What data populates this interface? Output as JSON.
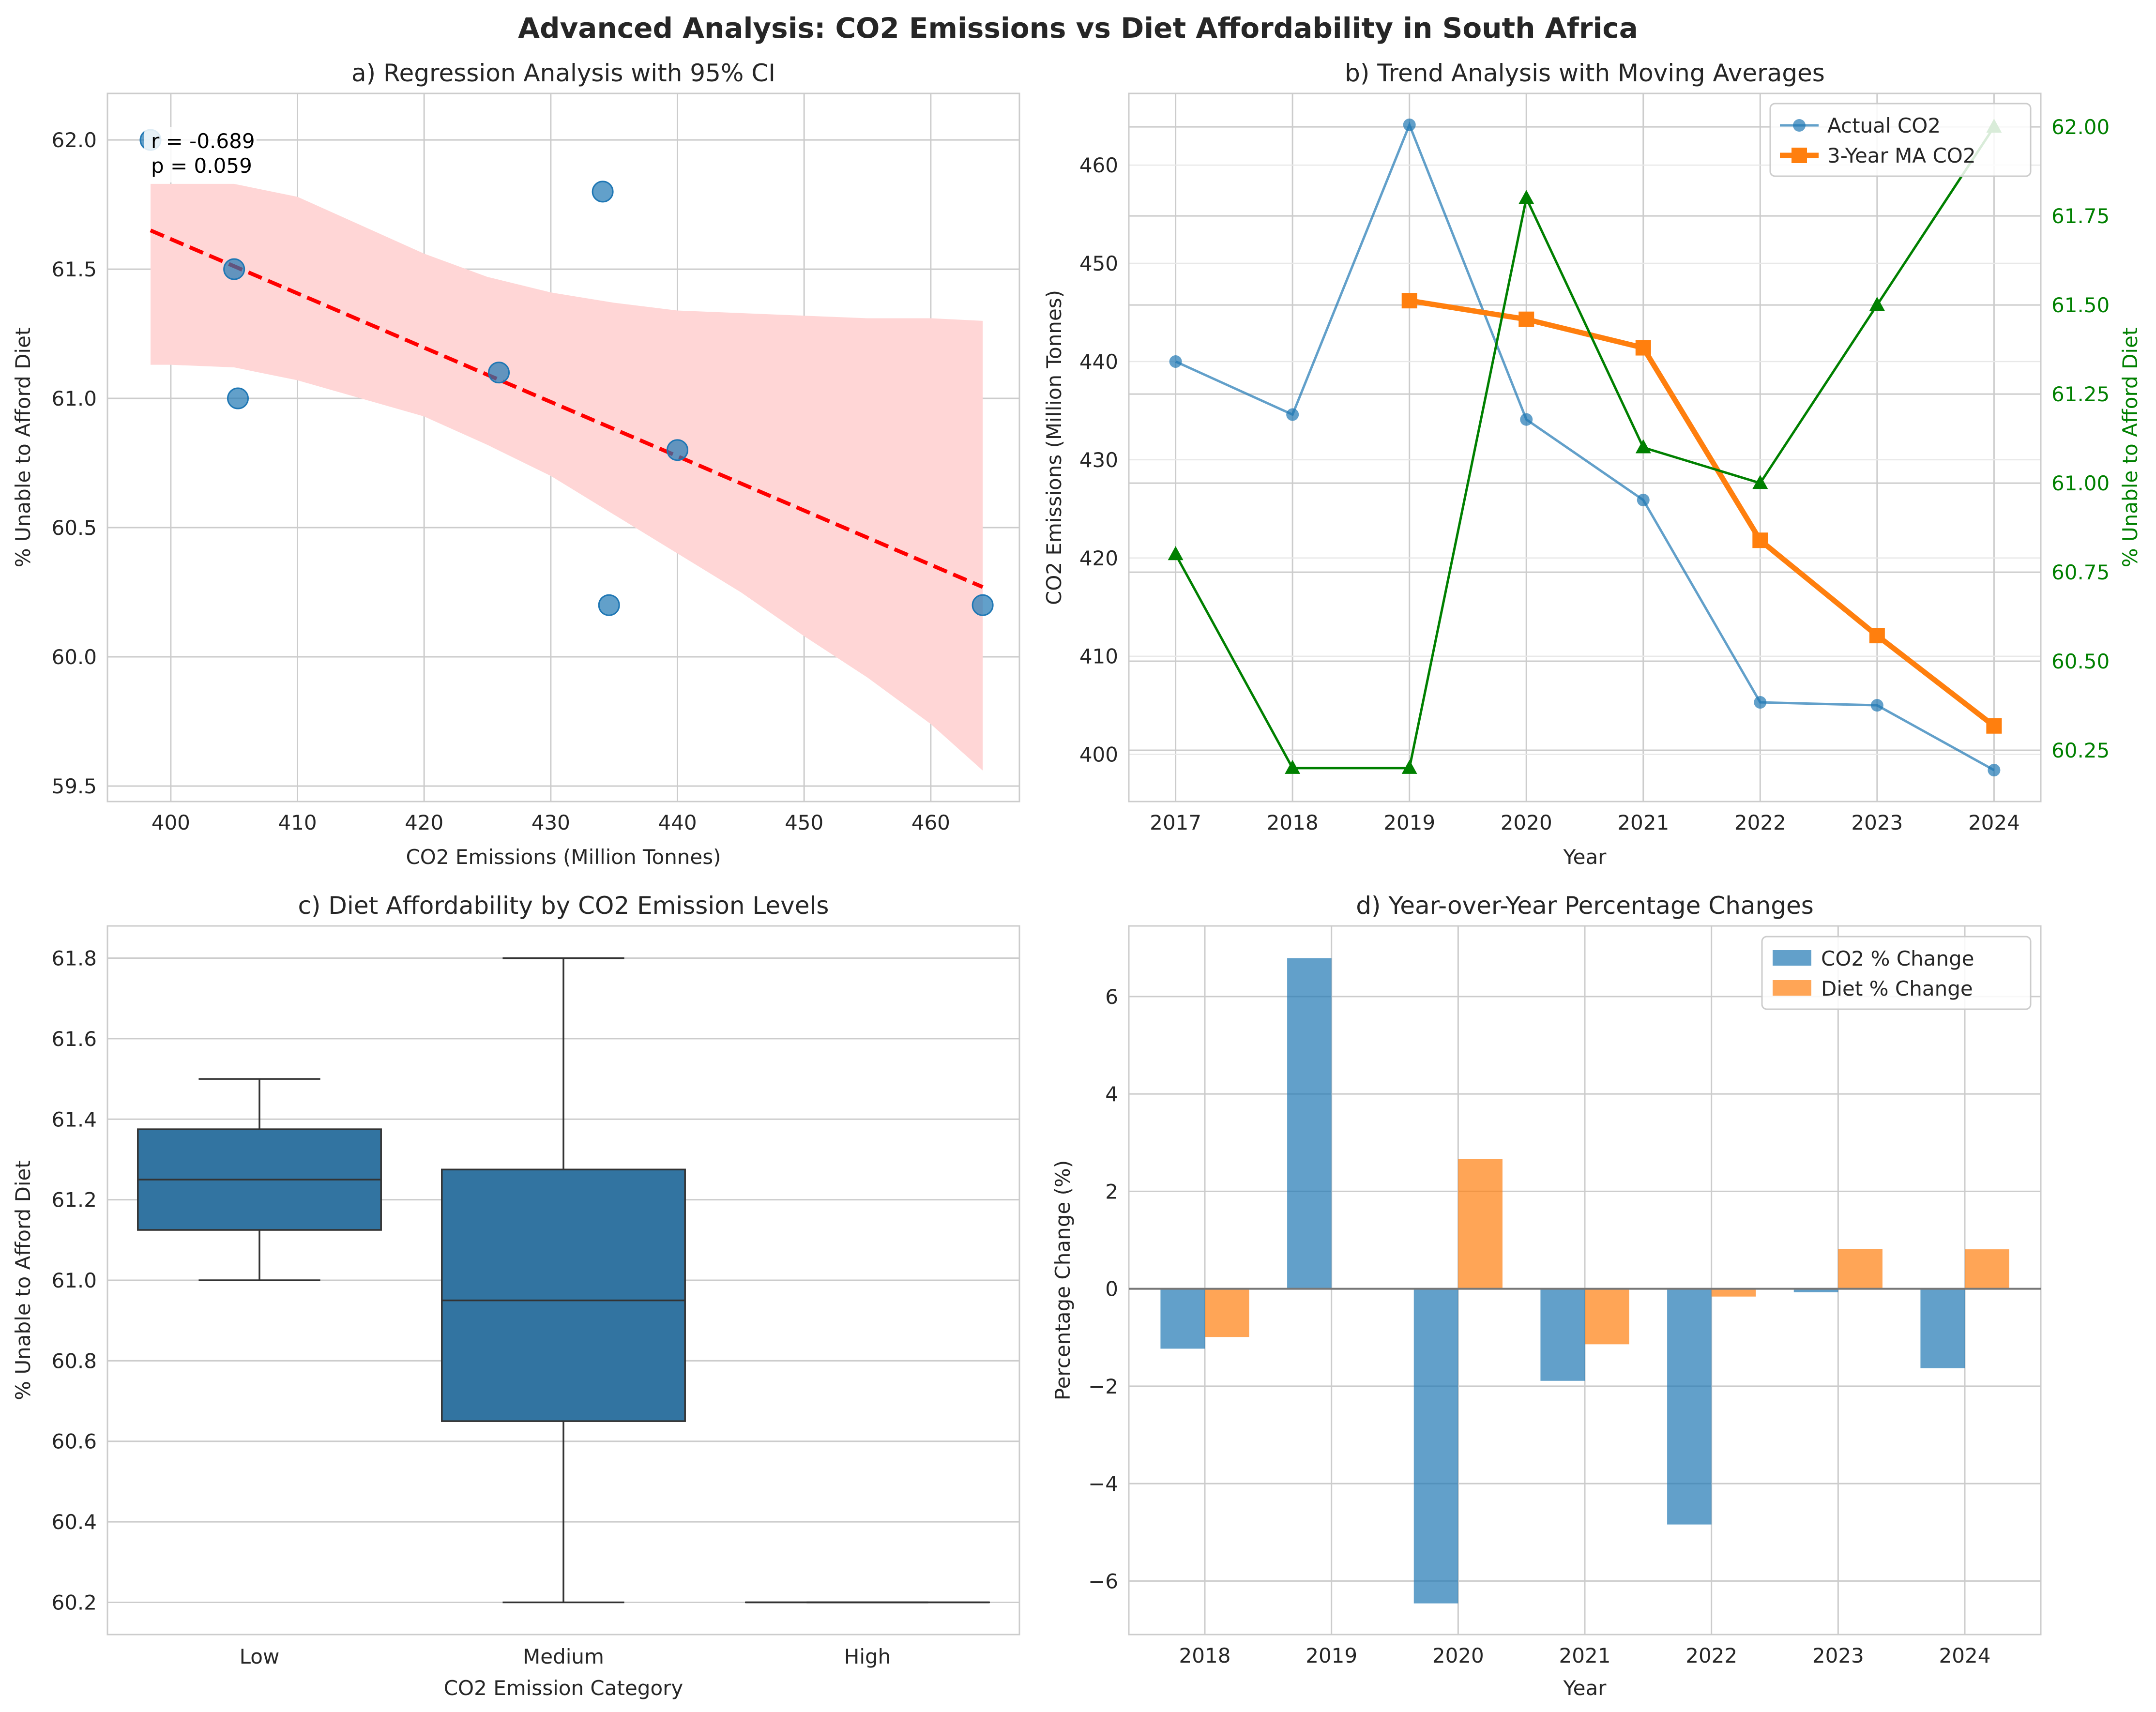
{
  "figure_title": "Advanced Analysis: CO2 Emissions vs Diet Affordability in South Africa",
  "colors": {
    "blue": "#1f77b4",
    "orange": "#ff7f0e",
    "green": "#008000",
    "red": "#ff0000",
    "ci_fill": "#ffd6d6",
    "grid": "#cccccc",
    "box_fill": "#3274a1",
    "box_line": "#333333"
  },
  "chart_data": [
    {
      "panel": "a",
      "type": "scatter",
      "title": "a) Regression Analysis with 95% CI",
      "xlabel": "CO2 Emissions (Million Tonnes)",
      "ylabel": "% Unable to Afford Diet",
      "xlim": [
        395,
        467
      ],
      "ylim": [
        59.44,
        62.18
      ],
      "xticks": [
        400,
        410,
        420,
        430,
        440,
        450,
        460
      ],
      "yticks": [
        59.5,
        60.0,
        60.5,
        61.0,
        61.5,
        62.0
      ],
      "xtick_labels": [
        "400",
        "410",
        "420",
        "430",
        "440",
        "450",
        "460"
      ],
      "ytick_labels": [
        "59.5",
        "60.0",
        "60.5",
        "61.0",
        "61.5",
        "62.0"
      ],
      "points": [
        {
          "x": 440.0,
          "y": 60.8
        },
        {
          "x": 434.6,
          "y": 60.2
        },
        {
          "x": 464.1,
          "y": 60.2
        },
        {
          "x": 434.1,
          "y": 61.8
        },
        {
          "x": 425.9,
          "y": 61.1
        },
        {
          "x": 405.3,
          "y": 61.0
        },
        {
          "x": 405.0,
          "y": 61.5
        },
        {
          "x": 398.4,
          "y": 62.0
        }
      ],
      "regression_line": {
        "x": [
          398.4,
          464.1
        ],
        "y": [
          61.65,
          60.27
        ]
      },
      "ci_band": {
        "x": [
          398.4,
          400,
          405,
          410,
          415,
          420,
          425,
          430,
          435,
          440,
          445,
          450,
          455,
          460,
          464.1
        ],
        "upper": [
          61.83,
          61.83,
          61.83,
          61.78,
          61.67,
          61.56,
          61.47,
          61.41,
          61.37,
          61.34,
          61.33,
          61.32,
          61.31,
          61.31,
          61.3
        ],
        "lower": [
          61.13,
          61.13,
          61.12,
          61.07,
          61.0,
          60.93,
          60.82,
          60.7,
          60.55,
          60.4,
          60.25,
          60.08,
          59.92,
          59.74,
          59.56
        ]
      },
      "annotation_lines": [
        "r = -0.689",
        "p = 0.059"
      ]
    },
    {
      "panel": "b",
      "type": "line",
      "title": "b) Trend Analysis with Moving Averages",
      "xlabel": "Year",
      "ylabel": "CO2 Emissions (Million Tonnes)",
      "y2label": "% Unable to Afford Diet",
      "x": [
        2017,
        2018,
        2019,
        2020,
        2021,
        2022,
        2023,
        2024
      ],
      "xlim": [
        2016.6,
        2024.4
      ],
      "ylim": [
        395.2,
        467.3
      ],
      "y2lim": [
        60.106,
        62.094
      ],
      "yticks": [
        400,
        410,
        420,
        430,
        440,
        450,
        460
      ],
      "y2ticks": [
        60.25,
        60.5,
        60.75,
        61.0,
        61.25,
        61.5,
        61.75,
        62.0
      ],
      "xtick_labels": [
        "2017",
        "2018",
        "2019",
        "2020",
        "2021",
        "2022",
        "2023",
        "2024"
      ],
      "ytick_labels": [
        "400",
        "410",
        "420",
        "430",
        "440",
        "450",
        "460"
      ],
      "y2tick_labels": [
        "60.25",
        "60.50",
        "60.75",
        "61.00",
        "61.25",
        "61.50",
        "61.75",
        "62.00"
      ],
      "series": [
        {
          "name": "Actual CO2",
          "axis": "left",
          "values": [
            440.0,
            434.6,
            464.1,
            434.1,
            425.9,
            405.3,
            405.0,
            398.4
          ]
        },
        {
          "name": "3-Year MA CO2",
          "axis": "left",
          "values": [
            null,
            null,
            446.2,
            444.3,
            441.4,
            421.8,
            412.1,
            402.9
          ]
        },
        {
          "axis": "right",
          "values": [
            60.8,
            60.2,
            60.2,
            61.8,
            61.1,
            61.0,
            61.5,
            62.0
          ]
        }
      ],
      "legend_position": "top-right"
    },
    {
      "panel": "c",
      "type": "box",
      "title": "c) Diet Affordability by CO2 Emission Levels",
      "xlabel": "CO2 Emission Category",
      "ylabel": "% Unable to Afford Diet",
      "categories": [
        "Low",
        "Medium",
        "High"
      ],
      "ylim": [
        60.12,
        61.88
      ],
      "yticks": [
        60.2,
        60.4,
        60.6,
        60.8,
        61.0,
        61.2,
        61.4,
        61.6,
        61.8
      ],
      "ytick_labels": [
        "60.2",
        "60.4",
        "60.6",
        "60.8",
        "61.0",
        "61.2",
        "61.4",
        "61.6",
        "61.8"
      ],
      "boxes": [
        {
          "min": 61.0,
          "q1": 61.125,
          "median": 61.25,
          "q3": 61.375,
          "max": 61.5
        },
        {
          "min": 60.2,
          "q1": 60.65,
          "median": 60.95,
          "q3": 61.275,
          "max": 61.8
        },
        {
          "min": 60.2,
          "q1": 60.2,
          "median": 60.2,
          "q3": 60.2,
          "max": 60.2
        }
      ]
    },
    {
      "panel": "d",
      "type": "bar",
      "title": "d) Year-over-Year Percentage Changes",
      "xlabel": "Year",
      "ylabel": "Percentage Change (%)",
      "categories": [
        "2018",
        "2019",
        "2020",
        "2021",
        "2022",
        "2023",
        "2024"
      ],
      "ylim": [
        -7.1,
        7.45
      ],
      "yticks": [
        -6,
        -4,
        -2,
        0,
        2,
        4,
        6
      ],
      "ytick_labels": [
        "−6",
        "−4",
        "−2",
        "0",
        "2",
        "4",
        "6"
      ],
      "series": [
        {
          "name": "CO2 % Change",
          "values": [
            -1.23,
            6.79,
            -6.46,
            -1.89,
            -4.84,
            -0.07,
            -1.63
          ]
        },
        {
          "name": "Diet % Change",
          "values": [
            -0.99,
            0.0,
            2.66,
            -1.14,
            -0.16,
            0.82,
            0.81
          ]
        }
      ],
      "legend_position": "top-right"
    }
  ]
}
